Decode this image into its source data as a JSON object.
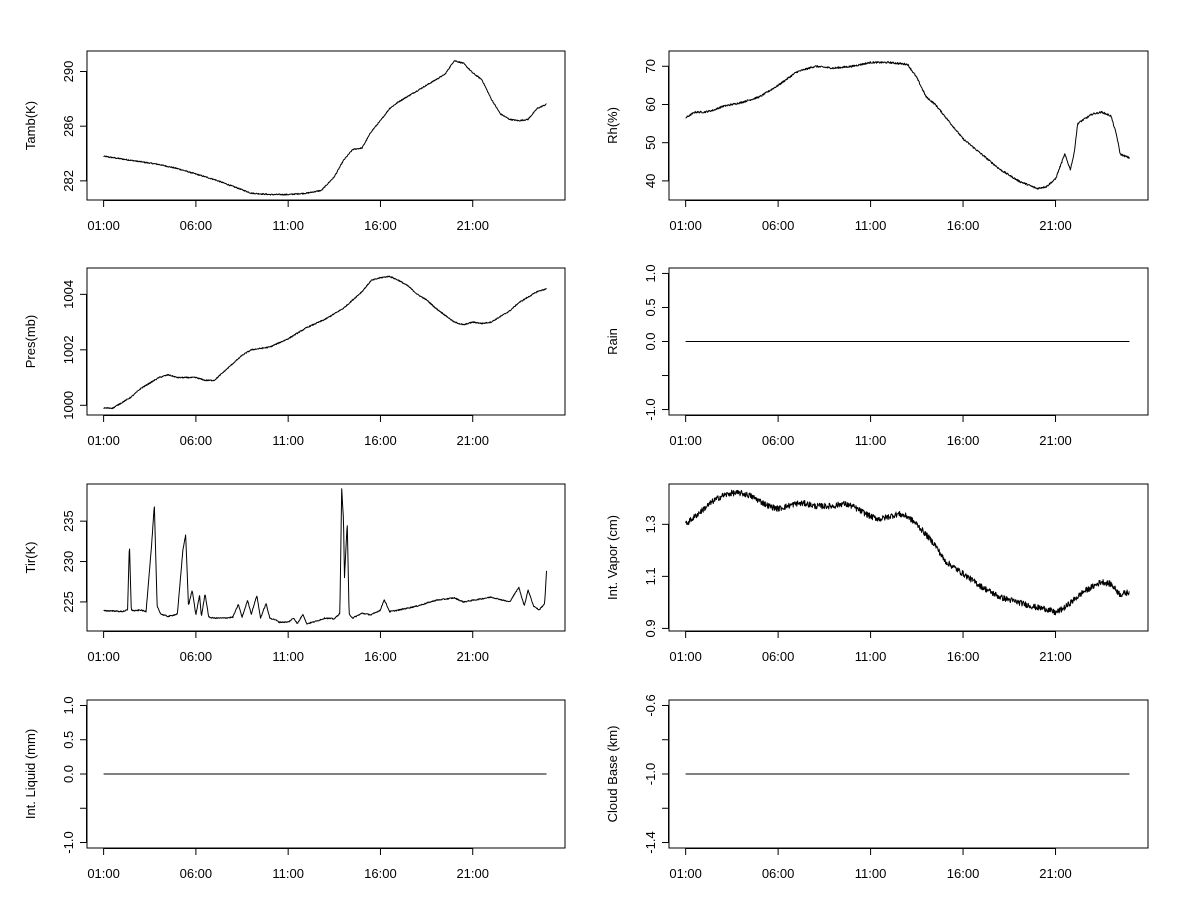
{
  "chart_data": [
    {
      "type": "line",
      "ylabel": "Tamb(K)",
      "xlabel": "",
      "xticks": [
        "01:00",
        "06:00",
        "11:00",
        "16:00",
        "21:00"
      ],
      "xlim_hours": [
        -0.9,
        25.0
      ],
      "ylim": [
        280.6,
        291.5
      ],
      "yticks": [
        282,
        286,
        290
      ],
      "series": [
        {
          "x": [
            0,
            1,
            2,
            3,
            4,
            5,
            6,
            7,
            8,
            9,
            10,
            11,
            11.8,
            12.5,
            13,
            13.5,
            14,
            14.5,
            15,
            15.5,
            16,
            16.5,
            17,
            17.5,
            18,
            18.5,
            19,
            19.5,
            20,
            20.5,
            21,
            21.5,
            22,
            22.5,
            23,
            23.5,
            24
          ],
          "y": [
            283.8,
            283.6,
            283.4,
            283.2,
            282.9,
            282.5,
            282.1,
            281.6,
            281.1,
            281.0,
            281.0,
            281.1,
            281.3,
            282.3,
            283.5,
            284.3,
            284.4,
            285.6,
            286.4,
            287.3,
            287.8,
            288.2,
            288.6,
            289.0,
            289.4,
            289.8,
            290.8,
            290.6,
            289.9,
            289.4,
            288.0,
            286.9,
            286.5,
            286.4,
            286.5,
            287.3,
            287.6
          ]
        }
      ]
    },
    {
      "type": "line",
      "ylabel": "Rh(%)",
      "xlabel": "",
      "xticks": [
        "01:00",
        "06:00",
        "11:00",
        "16:00",
        "21:00"
      ],
      "xlim_hours": [
        -0.9,
        25.0
      ],
      "ylim": [
        35,
        74
      ],
      "yticks": [
        40,
        50,
        60,
        70
      ],
      "series": [
        {
          "x": [
            0,
            0.5,
            1,
            1.5,
            2,
            3,
            4,
            5,
            6,
            7,
            8,
            9,
            10,
            11,
            12,
            12.5,
            13,
            13.5,
            14,
            15,
            16,
            17,
            18,
            19,
            19.5,
            20,
            20.5,
            20.8,
            21,
            21.2,
            21.5,
            22,
            22.5,
            23,
            23.3,
            23.5,
            24
          ],
          "y": [
            56.5,
            58,
            58,
            58.5,
            59.5,
            60.5,
            62,
            65,
            68.5,
            70,
            69.5,
            70,
            71,
            71,
            70.5,
            67,
            62,
            60,
            57,
            51,
            47,
            43,
            40,
            38,
            38.5,
            40.5,
            47,
            43,
            47,
            55,
            56,
            57.5,
            58,
            57,
            52,
            47,
            46
          ]
        }
      ]
    },
    {
      "type": "line",
      "ylabel": "Pres(mb)",
      "xlabel": "",
      "xticks": [
        "01:00",
        "06:00",
        "11:00",
        "16:00",
        "21:00"
      ],
      "xlim_hours": [
        -0.9,
        25.0
      ],
      "ylim": [
        999.65,
        1004.95
      ],
      "yticks": [
        1000,
        1002,
        1004
      ],
      "series": [
        {
          "x": [
            0,
            0.5,
            1,
            1.5,
            2,
            2.5,
            3,
            3.5,
            4,
            5,
            5.5,
            6,
            6.5,
            7,
            7.5,
            8,
            9,
            10,
            11,
            12,
            13,
            14,
            14.5,
            15,
            15.5,
            16,
            16.5,
            17,
            17.5,
            18,
            19,
            19.5,
            20,
            20.5,
            21,
            21.5,
            22,
            22.5,
            23,
            23.5,
            24
          ],
          "y": [
            999.9,
            999.9,
            1000.1,
            1000.3,
            1000.6,
            1000.8,
            1001.0,
            1001.1,
            1001.0,
            1001.0,
            1000.9,
            1000.9,
            1001.2,
            1001.5,
            1001.8,
            1002.0,
            1002.1,
            1002.4,
            1002.8,
            1003.1,
            1003.5,
            1004.1,
            1004.5,
            1004.6,
            1004.65,
            1004.5,
            1004.3,
            1004.0,
            1003.8,
            1003.5,
            1003.0,
            1002.9,
            1003.0,
            1002.95,
            1003.0,
            1003.2,
            1003.4,
            1003.7,
            1003.9,
            1004.1,
            1004.2
          ]
        }
      ]
    },
    {
      "type": "line",
      "ylabel": "Rain",
      "xlabel": "",
      "xticks": [
        "01:00",
        "06:00",
        "11:00",
        "16:00",
        "21:00"
      ],
      "xlim_hours": [
        -0.9,
        25.0
      ],
      "ylim": [
        -1.08,
        1.08
      ],
      "yticks": [
        -1.0,
        -0.5,
        0.0,
        0.5,
        1.0
      ],
      "ytick_labels": [
        "-1.0",
        "",
        "0.0",
        "0.5",
        "1.0"
      ],
      "series": [
        {
          "x": [
            0,
            24
          ],
          "y": [
            0,
            0
          ]
        }
      ]
    },
    {
      "type": "line",
      "ylabel": "Tir(K)",
      "xlabel": "",
      "xticks": [
        "01:00",
        "06:00",
        "11:00",
        "16:00",
        "21:00"
      ],
      "xlim_hours": [
        -0.9,
        25.0
      ],
      "ylim": [
        221.4,
        239.6
      ],
      "yticks": [
        225,
        230,
        235
      ],
      "series": [
        {
          "x": [
            0,
            0.5,
            1.0,
            1.3,
            1.4,
            1.5,
            1.7,
            2.0,
            2.3,
            2.6,
            2.75,
            2.9,
            3.1,
            3.5,
            4.0,
            4.3,
            4.45,
            4.6,
            4.8,
            5.0,
            5.2,
            5.3,
            5.5,
            5.7,
            6.0,
            6.5,
            7.0,
            7.3,
            7.5,
            7.8,
            8.0,
            8.3,
            8.5,
            8.8,
            9.0,
            9.3,
            9.5,
            10.0,
            10.3,
            10.5,
            10.8,
            11.0,
            11.5,
            12.0,
            12.5,
            12.8,
            12.9,
            13.0,
            13.05,
            13.2,
            13.3,
            13.5,
            14.0,
            14.5,
            15.0,
            15.2,
            15.5,
            16.0,
            17.0,
            18.0,
            19.0,
            19.5,
            20.0,
            21.0,
            22.0,
            22.5,
            22.8,
            23.0,
            23.3,
            23.6,
            23.9,
            24.0
          ],
          "y": [
            223.9,
            223.9,
            223.8,
            224.0,
            232.3,
            224.0,
            223.9,
            224.0,
            223.8,
            232.0,
            237.0,
            224.5,
            223.5,
            223.2,
            223.5,
            231.5,
            233.3,
            224.5,
            226.5,
            223.4,
            225.8,
            223.2,
            226.0,
            223.1,
            223.0,
            223.0,
            223.1,
            224.7,
            223.1,
            225.2,
            223.5,
            225.8,
            223.0,
            224.8,
            223.0,
            222.8,
            222.5,
            222.5,
            223.0,
            222.3,
            223.5,
            222.3,
            222.6,
            223.0,
            222.9,
            223.6,
            239.0,
            235.0,
            228.0,
            234.8,
            223.5,
            223.0,
            223.6,
            223.4,
            224.0,
            225.3,
            223.8,
            224.0,
            224.5,
            225.2,
            225.5,
            225.0,
            225.2,
            225.6,
            225.0,
            226.8,
            224.5,
            226.5,
            224.5,
            224.0,
            224.8,
            228.8
          ]
        }
      ]
    },
    {
      "type": "line",
      "ylabel": "Int. Vapor (cm)",
      "xlabel": "",
      "xticks": [
        "01:00",
        "06:00",
        "11:00",
        "16:00",
        "21:00"
      ],
      "xlim_hours": [
        -0.9,
        25.0
      ],
      "ylim": [
        0.89,
        1.455
      ],
      "yticks": [
        0.9,
        1.1,
        1.3
      ],
      "series": [
        {
          "x": [
            0,
            0.5,
            1,
            1.5,
            2,
            2.5,
            3,
            3.5,
            4,
            4.5,
            5,
            5.5,
            6,
            6.5,
            7,
            7.5,
            8,
            8.5,
            9,
            9.5,
            10,
            10.5,
            11,
            11.5,
            12,
            12.5,
            13,
            13.5,
            14,
            15,
            16,
            16.5,
            17,
            17.5,
            18,
            18.5,
            19,
            19.5,
            20,
            20.5,
            21,
            21.5,
            22,
            22.5,
            23,
            23.5,
            24
          ],
          "y": [
            1.3,
            1.33,
            1.36,
            1.39,
            1.41,
            1.42,
            1.42,
            1.41,
            1.39,
            1.37,
            1.36,
            1.37,
            1.38,
            1.38,
            1.37,
            1.37,
            1.37,
            1.38,
            1.37,
            1.35,
            1.33,
            1.32,
            1.33,
            1.34,
            1.33,
            1.3,
            1.26,
            1.22,
            1.16,
            1.11,
            1.06,
            1.04,
            1.02,
            1.01,
            1.0,
            0.99,
            0.98,
            0.975,
            0.96,
            0.98,
            1.01,
            1.04,
            1.06,
            1.08,
            1.07,
            1.03,
            1.04
          ]
        }
      ]
    },
    {
      "type": "line",
      "ylabel": "Int. Liquid (mm)",
      "xlabel": "",
      "xticks": [
        "01:00",
        "06:00",
        "11:00",
        "16:00",
        "21:00"
      ],
      "xlim_hours": [
        -0.9,
        25.0
      ],
      "ylim": [
        -1.08,
        1.08
      ],
      "yticks": [
        -1.0,
        -0.5,
        0.0,
        0.5,
        1.0
      ],
      "ytick_labels": [
        "-1.0",
        "",
        "0.0",
        "0.5",
        "1.0"
      ],
      "series": [
        {
          "x": [
            0,
            24
          ],
          "y": [
            0,
            0
          ]
        }
      ]
    },
    {
      "type": "line",
      "ylabel": "Cloud Base (km)",
      "xlabel": "",
      "xticks": [
        "01:00",
        "06:00",
        "11:00",
        "16:00",
        "21:00"
      ],
      "xlim_hours": [
        -0.9,
        25.0
      ],
      "ylim": [
        -1.432,
        -0.568
      ],
      "yticks": [
        -1.4,
        -1.2,
        -1.0,
        -0.8,
        -0.6
      ],
      "ytick_labels": [
        "-1.4",
        "",
        "-1.0",
        "",
        "-0.6"
      ],
      "series": [
        {
          "x": [
            0,
            24
          ],
          "y": [
            -1.0,
            -1.0
          ]
        }
      ]
    }
  ]
}
